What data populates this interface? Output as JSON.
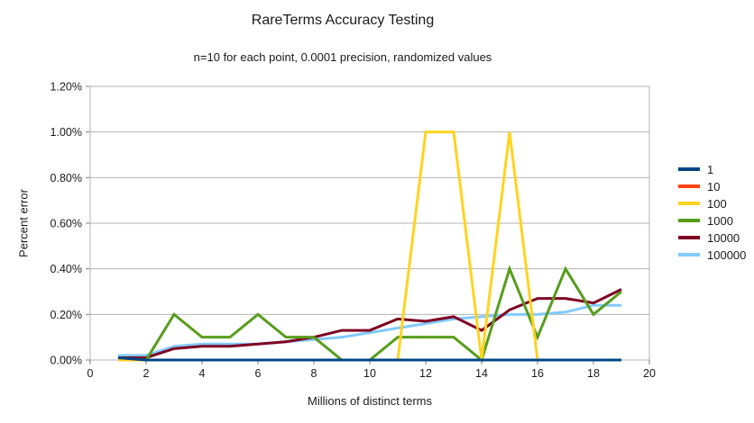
{
  "chart_data": {
    "type": "line",
    "title": "RareTerms Accuracy Testing",
    "subtitle": "n=10 for each point, 0.0001 precision, randomized values",
    "xlabel": "Millions of distinct terms",
    "ylabel": "Percent error",
    "xlim": [
      0,
      20
    ],
    "ylim": [
      0,
      1.2
    ],
    "y_unit": "percent",
    "grid": "horizontal",
    "legend_position": "right",
    "x_ticks": [
      0,
      2,
      4,
      6,
      8,
      10,
      12,
      14,
      16,
      18,
      20
    ],
    "x_tick_labels": [
      "0",
      "2",
      "4",
      "6",
      "8",
      "10",
      "12",
      "14",
      "16",
      "18",
      "20"
    ],
    "y_ticks": [
      0.0,
      0.2,
      0.4,
      0.6,
      0.8,
      1.0,
      1.2
    ],
    "y_tick_labels": [
      "0.00%",
      "0.20%",
      "0.40%",
      "0.60%",
      "0.80%",
      "1.00%",
      "1.20%"
    ],
    "x": [
      1,
      2,
      3,
      4,
      5,
      6,
      7,
      8,
      9,
      10,
      11,
      12,
      13,
      14,
      15,
      16,
      17,
      18,
      19
    ],
    "series": [
      {
        "name": "1",
        "color": "#004586",
        "values": [
          0.01,
          0.0,
          0.0,
          0.0,
          0.0,
          0.0,
          0.0,
          0.0,
          0.0,
          0.0,
          0.0,
          0.0,
          0.0,
          0.0,
          0.0,
          0.0,
          0.0,
          0.0,
          0.0
        ]
      },
      {
        "name": "10",
        "color": "#FF420E",
        "values": [
          0.01,
          0.0,
          0.0,
          0.0,
          0.0,
          0.0,
          0.0,
          0.0,
          0.0,
          0.0,
          0.0,
          0.0,
          0.0,
          0.0,
          0.0,
          0.0,
          0.0,
          0.0,
          0.0
        ]
      },
      {
        "name": "100",
        "color": "#FFD320",
        "values": [
          0.0,
          0.0,
          0.0,
          0.0,
          0.0,
          0.0,
          0.0,
          0.0,
          0.0,
          0.0,
          0.0,
          1.0,
          1.0,
          0.0,
          1.0,
          0.0,
          0.0,
          0.0,
          0.0
        ]
      },
      {
        "name": "1000",
        "color": "#579D1C",
        "values": [
          0.01,
          0.0,
          0.2,
          0.1,
          0.1,
          0.2,
          0.1,
          0.1,
          0.0,
          0.0,
          0.1,
          0.1,
          0.1,
          0.0,
          0.4,
          0.1,
          0.4,
          0.2,
          0.3
        ]
      },
      {
        "name": "10000",
        "color": "#7E0021",
        "values": [
          0.01,
          0.01,
          0.05,
          0.06,
          0.06,
          0.07,
          0.08,
          0.1,
          0.13,
          0.13,
          0.18,
          0.17,
          0.19,
          0.13,
          0.22,
          0.27,
          0.27,
          0.25,
          0.31
        ]
      },
      {
        "name": "100000",
        "color": "#83CAFF",
        "values": [
          0.02,
          0.02,
          0.06,
          0.07,
          0.07,
          0.07,
          0.08,
          0.09,
          0.1,
          0.12,
          0.14,
          0.16,
          0.18,
          0.19,
          0.2,
          0.2,
          0.21,
          0.24,
          0.24
        ]
      }
    ],
    "style": {
      "grid_color": "#b3b3b3",
      "border_color": "#b3b3b3",
      "tick_color": "#808080",
      "line_width": 3,
      "background": "#ffffff"
    }
  }
}
